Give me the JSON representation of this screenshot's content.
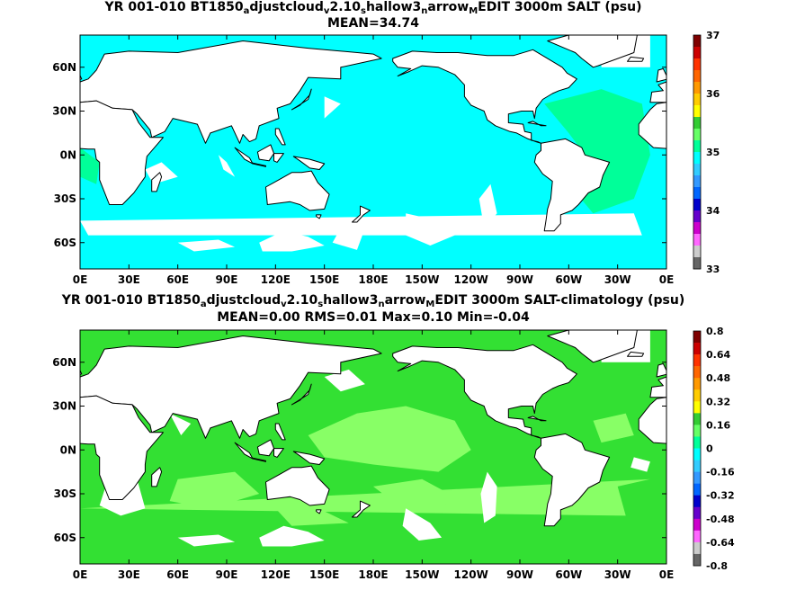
{
  "chart_data": [
    {
      "type": "heatmap",
      "title": "YR 001-010 BT1850_adjustcloud_v2.10_shallow3_narrow_MEDIT 3000m SALT (psu)",
      "title_parts": [
        {
          "text": "YR 001-010 BT1850",
          "sub": false
        },
        {
          "text": "a",
          "sub": true
        },
        {
          "text": "djustcloud",
          "sub": false
        },
        {
          "text": "v",
          "sub": true
        },
        {
          "text": "2.10",
          "sub": false
        },
        {
          "text": "s",
          "sub": true
        },
        {
          "text": "hallow3",
          "sub": false
        },
        {
          "text": "n",
          "sub": true
        },
        {
          "text": "arrow",
          "sub": false
        },
        {
          "text": "M",
          "sub": true
        },
        {
          "text": "EDIT 3000m SALT (psu)",
          "sub": false
        }
      ],
      "subtitle": "MEAN=34.74",
      "x_ticks": [
        "0E",
        "30E",
        "60E",
        "90E",
        "120E",
        "150E",
        "180E",
        "150W",
        "120W",
        "90W",
        "60W",
        "30W",
        "0E"
      ],
      "y_ticks": [
        "60N",
        "30N",
        "0N",
        "30S",
        "60S"
      ],
      "colorbar_ticks": [
        "37",
        "36",
        "35",
        "34",
        "33"
      ],
      "colorbar_colors": [
        "#7f0000",
        "#cc0000",
        "#ff3300",
        "#ff6600",
        "#ff9900",
        "#ffcc00",
        "#ffff00",
        "#33cc33",
        "#66ff66",
        "#00ff99",
        "#00ffff",
        "#33ccff",
        "#3399ff",
        "#0066ff",
        "#0000cc",
        "#6600cc",
        "#cc00cc",
        "#ff66ff",
        "#cccccc",
        "#666666"
      ],
      "dominant_value_psu": "34.7-35.0",
      "grid": false
    },
    {
      "type": "heatmap",
      "title": "YR 001-010 BT1850_adjustcloud_v2.10_shallow3_narrow_MEDIT 3000m SALT-climatology (psu)",
      "title_parts": [
        {
          "text": "YR 001-010 BT1850",
          "sub": false
        },
        {
          "text": "a",
          "sub": true
        },
        {
          "text": "djustcloud",
          "sub": false
        },
        {
          "text": "v",
          "sub": true
        },
        {
          "text": "2.10",
          "sub": false
        },
        {
          "text": "s",
          "sub": true
        },
        {
          "text": "hallow3",
          "sub": false
        },
        {
          "text": "n",
          "sub": true
        },
        {
          "text": "arrow",
          "sub": false
        },
        {
          "text": "M",
          "sub": true
        },
        {
          "text": "EDIT 3000m SALT-climatology (psu)",
          "sub": false
        }
      ],
      "subtitle": "MEAN=0.00   RMS=0.01   Max=0.10   Min=-0.04",
      "x_ticks": [
        "0E",
        "30E",
        "60E",
        "90E",
        "120E",
        "150E",
        "180E",
        "150W",
        "120W",
        "90W",
        "60W",
        "30W",
        "0E"
      ],
      "y_ticks": [
        "60N",
        "30N",
        "0N",
        "30S",
        "60S"
      ],
      "colorbar_ticks": [
        "0.8",
        "0.64",
        "0.48",
        "0.32",
        "0.16",
        "0",
        "-0.16",
        "-0.32",
        "-0.48",
        "-0.64",
        "-0.8"
      ],
      "colorbar_colors": [
        "#7f0000",
        "#cc0000",
        "#ff3300",
        "#ff6600",
        "#ff9900",
        "#ffcc00",
        "#ffff00",
        "#33cc33",
        "#66ff66",
        "#00ff99",
        "#00ffff",
        "#33ccff",
        "#3399ff",
        "#0066ff",
        "#0000cc",
        "#6600cc",
        "#cc00cc",
        "#ff66ff",
        "#cccccc",
        "#666666"
      ],
      "grid": false
    }
  ]
}
